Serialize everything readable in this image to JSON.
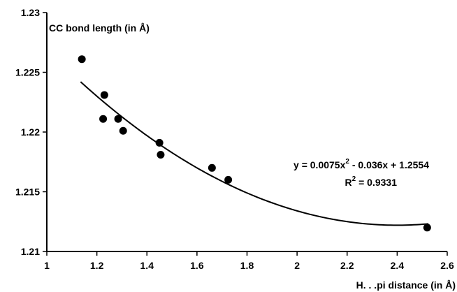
{
  "chart_data": {
    "type": "scatter",
    "ylabel": "CC bond length (in Å)",
    "xlabel": "H. . .pi distance (in Å)",
    "xlim": [
      1,
      2.6
    ],
    "ylim": [
      1.21,
      1.23
    ],
    "x_ticks": [
      1,
      1.2,
      1.4,
      1.6,
      1.8,
      2,
      2.2,
      2.4,
      2.6
    ],
    "x_tick_labels": [
      "1",
      "1.2",
      "1.4",
      "1.6",
      "1.8",
      "2",
      "2.2",
      "2.4",
      "2.6"
    ],
    "y_ticks": [
      1.21,
      1.215,
      1.22,
      1.225,
      1.23
    ],
    "y_tick_labels": [
      "1.21",
      "1.215",
      "1.22",
      "1.225",
      "1.23"
    ],
    "grid": false,
    "legend": "none",
    "points": [
      {
        "x": 1.14,
        "y": 1.2261
      },
      {
        "x": 1.23,
        "y": 1.2231
      },
      {
        "x": 1.225,
        "y": 1.2211
      },
      {
        "x": 1.285,
        "y": 1.2211
      },
      {
        "x": 1.305,
        "y": 1.2201
      },
      {
        "x": 1.45,
        "y": 1.2191
      },
      {
        "x": 1.455,
        "y": 1.2181
      },
      {
        "x": 1.66,
        "y": 1.217
      },
      {
        "x": 1.725,
        "y": 1.216
      },
      {
        "x": 2.52,
        "y": 1.212
      }
    ],
    "trendline": {
      "type": "polynomial",
      "coefficients": [
        0.0075,
        -0.036,
        1.2554
      ],
      "x_range": [
        1.135,
        2.525
      ]
    },
    "annotations": {
      "equation": "y = 0.0075x",
      "equation_superscript": "2",
      "equation_rest": " - 0.036x + 1.2554",
      "r2_prefix": "R",
      "r2_superscript": "2",
      "r2_rest": " = 0.9331"
    }
  }
}
